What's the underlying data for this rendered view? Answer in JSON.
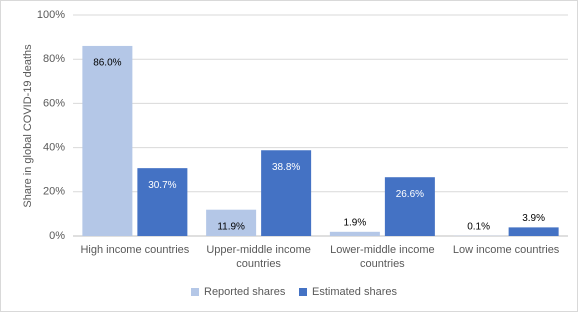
{
  "chart_data": {
    "type": "bar",
    "y_label": "Share in global COVID-19 deaths",
    "categories": [
      "High income countries",
      "Upper-middle income countries",
      "Lower-middle income countries",
      "Low income countries"
    ],
    "series": [
      {
        "name": "Reported shares",
        "color": "#b4c7e7",
        "values": [
          86.0,
          11.9,
          1.9,
          0.1
        ],
        "value_labels": [
          "86.0%",
          "11.9%",
          "1.9%",
          "0.1%"
        ]
      },
      {
        "name": "Estimated shares",
        "color": "#4472c4",
        "values": [
          30.7,
          38.8,
          26.6,
          3.9
        ],
        "value_labels": [
          "30.7%",
          "38.8%",
          "26.6%",
          "3.9%"
        ]
      }
    ],
    "ylim": [
      0,
      100
    ],
    "yticks": [
      {
        "value": 0,
        "label": "0%"
      },
      {
        "value": 20,
        "label": "20%"
      },
      {
        "value": 40,
        "label": "40%"
      },
      {
        "value": 60,
        "label": "60%"
      },
      {
        "value": 80,
        "label": "80%"
      },
      {
        "value": 100,
        "label": "100%"
      }
    ],
    "grid": true,
    "legend": "bottom"
  }
}
